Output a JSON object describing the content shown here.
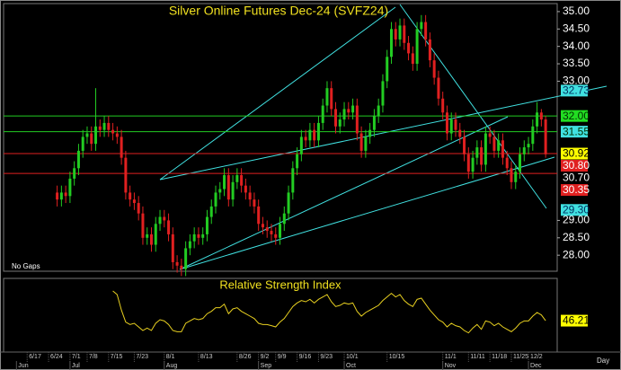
{
  "chart_data": {
    "type": "candlestick",
    "title": "Silver Online Futures Dec-24 (SVFZ24)",
    "gap_note": "No Gaps",
    "x_unit_label": "Day",
    "xlim": [
      -12.5,
      116.7
    ],
    "xticks": [
      {
        "value": -7,
        "label": "6/17"
      },
      {
        "value": -2,
        "label": "6/24"
      },
      {
        "value": 3,
        "label": "7/1"
      },
      {
        "value": 7,
        "label": "7/8"
      },
      {
        "value": 12,
        "label": "7/15"
      },
      {
        "value": 18,
        "label": "7/23"
      },
      {
        "value": 25,
        "label": "8/1"
      },
      {
        "value": 33,
        "label": "8/13"
      },
      {
        "value": 42,
        "label": "8/26"
      },
      {
        "value": 47,
        "label": "9/2"
      },
      {
        "value": 51,
        "label": "9/9"
      },
      {
        "value": 56,
        "label": "9/16"
      },
      {
        "value": 61,
        "label": "9/23"
      },
      {
        "value": 67,
        "label": "10/1"
      },
      {
        "value": 77,
        "label": "10/15"
      },
      {
        "value": 90,
        "label": "11/1"
      },
      {
        "value": 96,
        "label": "11/11"
      },
      {
        "value": 101,
        "label": "11/18"
      },
      {
        "value": 106,
        "label": "11/25"
      },
      {
        "value": 110,
        "label": "12/2"
      }
    ],
    "month_ticks": [
      {
        "value": -9.5,
        "label": "Jun"
      },
      {
        "value": 3,
        "label": "Jul"
      },
      {
        "value": 25,
        "label": "Aug"
      },
      {
        "value": 47,
        "label": "Sep"
      },
      {
        "value": 67,
        "label": "Oct"
      },
      {
        "value": 90,
        "label": "Nov"
      },
      {
        "value": 110,
        "label": "Dec"
      }
    ],
    "ylim": [
      27.54,
      35.23
    ],
    "yticks": [
      {
        "value": 35,
        "label": "35.00"
      },
      {
        "value": 34.5,
        "label": "34.50"
      },
      {
        "value": 34,
        "label": "34.00"
      },
      {
        "value": 33.5,
        "label": "33.50"
      },
      {
        "value": 33,
        "label": "33.00"
      },
      {
        "value": 29,
        "label": "29.00"
      },
      {
        "value": 28.5,
        "label": "28.50"
      },
      {
        "value": 28,
        "label": "28.00"
      }
    ],
    "up_color": "#22cc22",
    "down_color": "#e02020",
    "open": [
      29.8,
      29.6,
      29.8,
      29.7,
      30.2,
      30.5,
      31.0,
      31.4,
      31.5,
      31.2,
      31.7,
      31.6,
      31.8,
      31.6,
      31.5,
      31.4,
      30.8,
      29.8,
      29.6,
      29.5,
      29.2,
      28.5,
      28.6,
      28.3,
      28.9,
      29.1,
      29.0,
      28.6,
      27.8,
      27.7,
      27.6,
      28.2,
      28.4,
      28.6,
      28.5,
      28.6,
      29.1,
      29.4,
      29.8,
      29.9,
      30.3,
      29.6,
      30.1,
      30.3,
      30.0,
      29.8,
      29.6,
      29.4,
      28.9,
      28.8,
      28.7,
      28.6,
      28.5,
      28.9,
      29.2,
      29.8,
      30.5,
      30.9,
      31.4,
      31.3,
      31.6,
      31.3,
      31.8,
      32.3,
      32.8,
      32.2,
      31.7,
      31.9,
      32.2,
      32.1,
      32.3,
      31.5,
      31.0,
      31.4,
      31.6,
      32.0,
      32.3,
      33.0,
      33.7,
      34.5,
      34.2,
      34.6,
      34.1,
      33.8,
      33.5,
      34.5,
      34.7,
      34.2,
      33.6,
      33.1,
      32.5,
      32.1,
      31.5,
      31.9,
      31.6,
      31.4,
      30.9,
      30.4,
      30.8,
      31.1,
      30.6,
      31.5,
      31.4,
      31.0,
      31.3,
      30.8,
      30.5,
      30.1,
      30.4,
      30.9,
      31.1,
      31.2,
      31.7,
      32.1,
      31.9
    ],
    "high": [
      30.0,
      30.0,
      30.0,
      30.4,
      30.7,
      31.2,
      31.6,
      31.7,
      31.7,
      32.8,
      31.9,
      32.0,
      32.0,
      31.8,
      31.7,
      31.6,
      31.0,
      30.0,
      29.8,
      29.7,
      29.4,
      28.8,
      28.8,
      29.1,
      29.3,
      29.3,
      29.2,
      28.8,
      28.0,
      27.9,
      28.4,
      28.6,
      28.8,
      28.8,
      28.8,
      29.3,
      29.6,
      30.0,
      30.1,
      30.5,
      30.5,
      30.3,
      30.5,
      30.5,
      30.2,
      30.0,
      29.8,
      29.6,
      29.1,
      29.0,
      28.9,
      28.8,
      29.1,
      29.4,
      30.0,
      30.7,
      31.1,
      31.6,
      31.6,
      31.8,
      31.8,
      32.0,
      32.5,
      33.0,
      33.0,
      32.4,
      32.1,
      32.4,
      32.4,
      32.5,
      32.5,
      31.7,
      31.6,
      31.8,
      32.2,
      32.5,
      33.2,
      33.9,
      34.7,
      34.7,
      34.8,
      34.8,
      34.3,
      34.0,
      34.7,
      34.9,
      34.9,
      34.4,
      33.8,
      33.3,
      32.7,
      32.3,
      32.1,
      32.1,
      31.8,
      31.6,
      31.1,
      31.0,
      31.3,
      31.3,
      31.7,
      31.7,
      31.6,
      31.5,
      31.5,
      31.0,
      30.7,
      30.6,
      31.1,
      31.3,
      31.4,
      31.9,
      32.4,
      32.2,
      32.0
    ],
    "low": [
      29.4,
      29.4,
      29.5,
      29.5,
      30.0,
      30.3,
      30.8,
      31.2,
      31.0,
      31.0,
      31.4,
      31.4,
      31.4,
      31.3,
      31.2,
      30.6,
      29.6,
      29.4,
      29.3,
      29.0,
      28.3,
      28.3,
      28.1,
      28.1,
      28.7,
      28.8,
      28.4,
      27.6,
      27.5,
      27.4,
      27.4,
      28.0,
      28.2,
      28.3,
      28.3,
      28.4,
      28.9,
      29.2,
      29.6,
      29.7,
      29.4,
      29.4,
      29.9,
      29.8,
      29.6,
      29.4,
      29.2,
      28.7,
      28.6,
      28.5,
      28.4,
      28.3,
      28.3,
      28.7,
      29.0,
      29.6,
      30.3,
      30.7,
      31.1,
      31.1,
      31.1,
      31.1,
      31.6,
      32.1,
      32.0,
      31.5,
      31.5,
      31.7,
      31.9,
      31.9,
      31.3,
      30.8,
      30.8,
      31.2,
      31.4,
      31.8,
      32.1,
      32.8,
      33.5,
      34.0,
      34.0,
      33.9,
      33.6,
      33.3,
      33.3,
      34.3,
      34.0,
      33.4,
      32.9,
      32.3,
      31.9,
      31.3,
      31.3,
      31.4,
      31.2,
      30.7,
      30.2,
      30.2,
      30.6,
      30.4,
      30.4,
      31.2,
      30.8,
      30.8,
      30.6,
      30.3,
      29.9,
      29.9,
      30.2,
      30.7,
      30.9,
      31.0,
      31.5,
      31.7,
      30.8
    ],
    "close": [
      29.6,
      29.8,
      29.7,
      30.2,
      30.5,
      31.0,
      31.4,
      31.5,
      31.2,
      31.7,
      31.6,
      31.8,
      31.6,
      31.5,
      31.4,
      30.8,
      29.8,
      29.6,
      29.5,
      29.2,
      28.5,
      28.6,
      28.3,
      28.9,
      29.1,
      29.0,
      28.6,
      27.8,
      27.7,
      27.6,
      28.2,
      28.4,
      28.6,
      28.5,
      28.6,
      29.1,
      29.4,
      29.8,
      29.9,
      30.3,
      29.6,
      30.1,
      30.3,
      30.0,
      29.8,
      29.6,
      29.4,
      28.9,
      28.8,
      28.7,
      28.6,
      28.5,
      28.9,
      29.2,
      29.8,
      30.5,
      30.9,
      31.4,
      31.3,
      31.6,
      31.3,
      31.8,
      32.3,
      32.8,
      32.2,
      31.7,
      31.9,
      32.2,
      32.1,
      32.3,
      31.5,
      31.0,
      31.4,
      31.6,
      32.0,
      32.3,
      33.0,
      33.7,
      34.5,
      34.2,
      34.6,
      34.1,
      33.8,
      33.5,
      34.5,
      34.7,
      34.2,
      33.6,
      33.1,
      32.5,
      32.1,
      31.5,
      31.9,
      31.6,
      31.4,
      30.9,
      30.4,
      30.8,
      31.1,
      30.6,
      31.5,
      31.4,
      31.0,
      31.3,
      30.8,
      30.5,
      30.1,
      30.4,
      30.9,
      31.1,
      31.2,
      31.7,
      32.1,
      31.9,
      30.9
    ],
    "price_markers": [
      {
        "value": 32.73,
        "label": "32.73",
        "bg": "#40e0e0",
        "fg": "#003060"
      },
      {
        "value": 32.0,
        "label": "32.00",
        "bg": "#22dd22",
        "fg": "#003000",
        "line": "#22cc22"
      },
      {
        "value": 31.55,
        "label": "31.55",
        "bg": "#40e0e0",
        "fg": "#003000",
        "line": "#22cc22"
      },
      {
        "value": 30.92,
        "label": "30.92",
        "bg": "#ffff00",
        "fg": "#000000",
        "line": "#e02020"
      },
      {
        "value": 30.8,
        "label": "30.80",
        "bg": "#e02020",
        "fg": "#ffffff"
      },
      {
        "value": 30.7,
        "label": "30.70",
        "bg": "#000000",
        "fg": "#ffffff"
      },
      {
        "value": 30.35,
        "label": "30.35",
        "bg": "#e02020",
        "fg": "#ffffff",
        "line": "#e02020"
      },
      {
        "value": 29.3,
        "label": "29.30",
        "bg": "#40e0e0",
        "fg": "#003060"
      }
    ],
    "rsi": {
      "title": "Relative Strength Index",
      "color": "#e8d020",
      "ylim": [
        20,
        80
      ],
      "last_label": {
        "value": 46.21,
        "label": "46.21"
      },
      "values": [
        null,
        null,
        null,
        null,
        null,
        null,
        null,
        null,
        null,
        null,
        null,
        null,
        null,
        71,
        68,
        55,
        45,
        43,
        44,
        41,
        38,
        40,
        38,
        44,
        47,
        46,
        43,
        38,
        37,
        37,
        44,
        46,
        48,
        47,
        48,
        52,
        54,
        57,
        57,
        60,
        52,
        56,
        57,
        54,
        52,
        50,
        48,
        44,
        43,
        43,
        42,
        41,
        45,
        48,
        53,
        58,
        61,
        63,
        62,
        64,
        61,
        64,
        66,
        68,
        62,
        58,
        59,
        61,
        60,
        61,
        54,
        50,
        53,
        55,
        57,
        59,
        63,
        66,
        69,
        66,
        68,
        63,
        60,
        58,
        64,
        65,
        60,
        55,
        51,
        47,
        45,
        41,
        44,
        42,
        41,
        38,
        36,
        40,
        43,
        39,
        46,
        45,
        42,
        44,
        41,
        39,
        37,
        40,
        44,
        46,
        46,
        50,
        53,
        51,
        46.21
      ]
    }
  }
}
